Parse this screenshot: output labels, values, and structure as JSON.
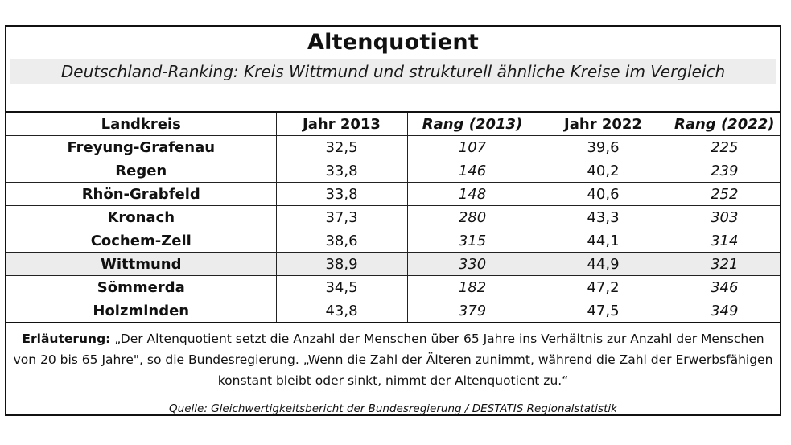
{
  "title": "Altenquotient",
  "subtitle": "Deutschland-Ranking: Kreis Wittmund und strukturell ähnliche Kreise im Vergleich",
  "table": {
    "headers": [
      "Landkreis",
      "Jahr 2013",
      "Rang (2013)",
      "Jahr 2022",
      "Rang (2022)"
    ],
    "rows": [
      [
        "Freyung-Grafenau",
        "32,5",
        "107",
        "39,6",
        "225"
      ],
      [
        "Regen",
        "33,8",
        "146",
        "40,2",
        "239"
      ],
      [
        "Rhön-Grabfeld",
        "33,8",
        "148",
        "40,6",
        "252"
      ],
      [
        "Kronach",
        "37,3",
        "280",
        "43,3",
        "303"
      ],
      [
        "Cochem-Zell",
        "38,6",
        "315",
        "44,1",
        "314"
      ],
      [
        "Wittmund",
        "38,9",
        "330",
        "44,9",
        "321"
      ],
      [
        "Sömmerda",
        "34,5",
        "182",
        "47,2",
        "346"
      ],
      [
        "Holzminden",
        "43,8",
        "379",
        "47,5",
        "349"
      ]
    ],
    "highlight_row": "Wittmund",
    "highlight_color": "#ececec"
  },
  "note": {
    "label": "Erläuterung:",
    "text": " „Der Altenquotient setzt die Anzahl der Menschen über 65 Jahre ins Verhältnis zur Anzahl der Menschen von 20 bis 65 Jahre\", so die Bundesregierung. „Wenn die Zahl der Älteren zunimmt, während die Zahl der Erwerbsfähigen konstant bleibt oder sinkt, nimmt der Altenquotient zu.“"
  },
  "source": "Quelle: Gleichwertigkeitsbericht der Bundesregierung / DESTATIS Regionalstatistik"
}
